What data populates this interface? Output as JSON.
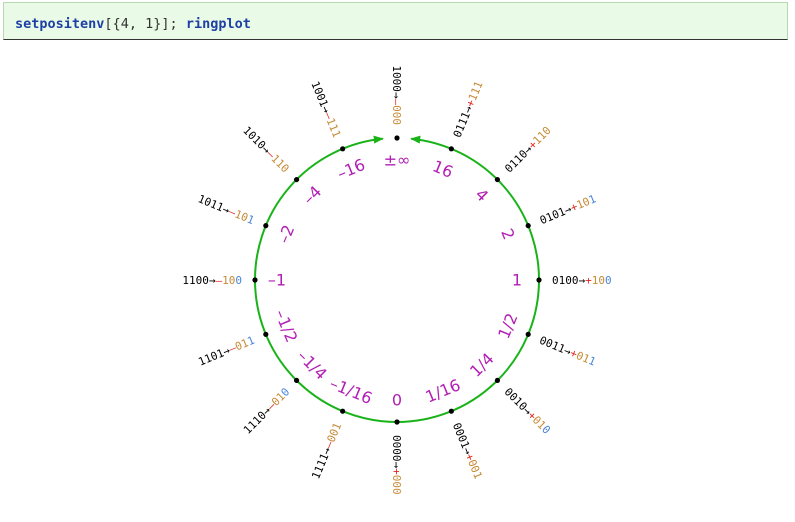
{
  "input": {
    "code_parts": [
      "setpositenv",
      "[",
      "{",
      "4",
      ",",
      " ",
      "1",
      "}",
      "]",
      ";",
      " ",
      "ringplot"
    ]
  },
  "colors": {
    "ring": "#19b319",
    "point": "#000000",
    "value": "#b21fb4",
    "bits": "#000000",
    "arrow": "#000000",
    "sign_pos": "#e2261b",
    "sign_neg": "#e2261b",
    "regime": "#c68a35",
    "fraction": "#4a86d8"
  },
  "ring": {
    "points": [
      {
        "value": "±∞",
        "bits": "1000",
        "sign": "–",
        "regime": "000",
        "fraction": ""
      },
      {
        "value": "16",
        "bits": "0111",
        "sign": "+",
        "regime": "111",
        "fraction": ""
      },
      {
        "value": "4",
        "bits": "0110",
        "sign": "+",
        "regime": "110",
        "fraction": ""
      },
      {
        "value": "2",
        "bits": "0101",
        "sign": "+",
        "regime": "10",
        "fraction": "1"
      },
      {
        "value": "1",
        "bits": "0100",
        "sign": "+",
        "regime": "10",
        "fraction": "0"
      },
      {
        "value": "1/2",
        "bits": "0011",
        "sign": "+",
        "regime": "01",
        "fraction": "1"
      },
      {
        "value": "1/4",
        "bits": "0010",
        "sign": "+",
        "regime": "01",
        "fraction": "0"
      },
      {
        "value": "1/16",
        "bits": "0001",
        "sign": "+",
        "regime": "001",
        "fraction": ""
      },
      {
        "value": "0",
        "bits": "0000",
        "sign": "+",
        "regime": "000",
        "fraction": ""
      },
      {
        "value": "–1/16",
        "bits": "1111",
        "sign": "–",
        "regime": "001",
        "fraction": ""
      },
      {
        "value": "–1/4",
        "bits": "1110",
        "sign": "–",
        "regime": "01",
        "fraction": "0"
      },
      {
        "value": "–1/2",
        "bits": "1101",
        "sign": "–",
        "regime": "01",
        "fraction": "1"
      },
      {
        "value": "–1",
        "bits": "1100",
        "sign": "–",
        "regime": "10",
        "fraction": "0"
      },
      {
        "value": "–2",
        "bits": "1011",
        "sign": "–",
        "regime": "10",
        "fraction": "1"
      },
      {
        "value": "–4",
        "bits": "1010",
        "sign": "–",
        "regime": "110",
        "fraction": ""
      },
      {
        "value": "–16",
        "bits": "1001",
        "sign": "–",
        "regime": "111",
        "fraction": ""
      }
    ]
  }
}
